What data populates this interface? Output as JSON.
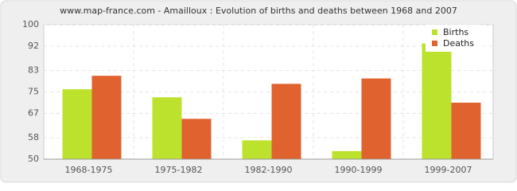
{
  "chart_data": {
    "type": "bar",
    "title": "www.map-france.com - Amailloux : Evolution of births and deaths between 1968 and 2007",
    "categories": [
      "1968-1975",
      "1975-1982",
      "1982-1990",
      "1990-1999",
      "1999-2007"
    ],
    "series": [
      {
        "name": "Births",
        "color": "#bde22e",
        "values": [
          76,
          73,
          57,
          53,
          93
        ]
      },
      {
        "name": "Deaths",
        "color": "#e0622f",
        "values": [
          81,
          65,
          78,
          80,
          71
        ]
      }
    ],
    "ylim": [
      50,
      100
    ],
    "yticks": [
      50,
      58,
      67,
      75,
      83,
      92,
      100
    ],
    "grid": true,
    "legend": "top-right"
  }
}
